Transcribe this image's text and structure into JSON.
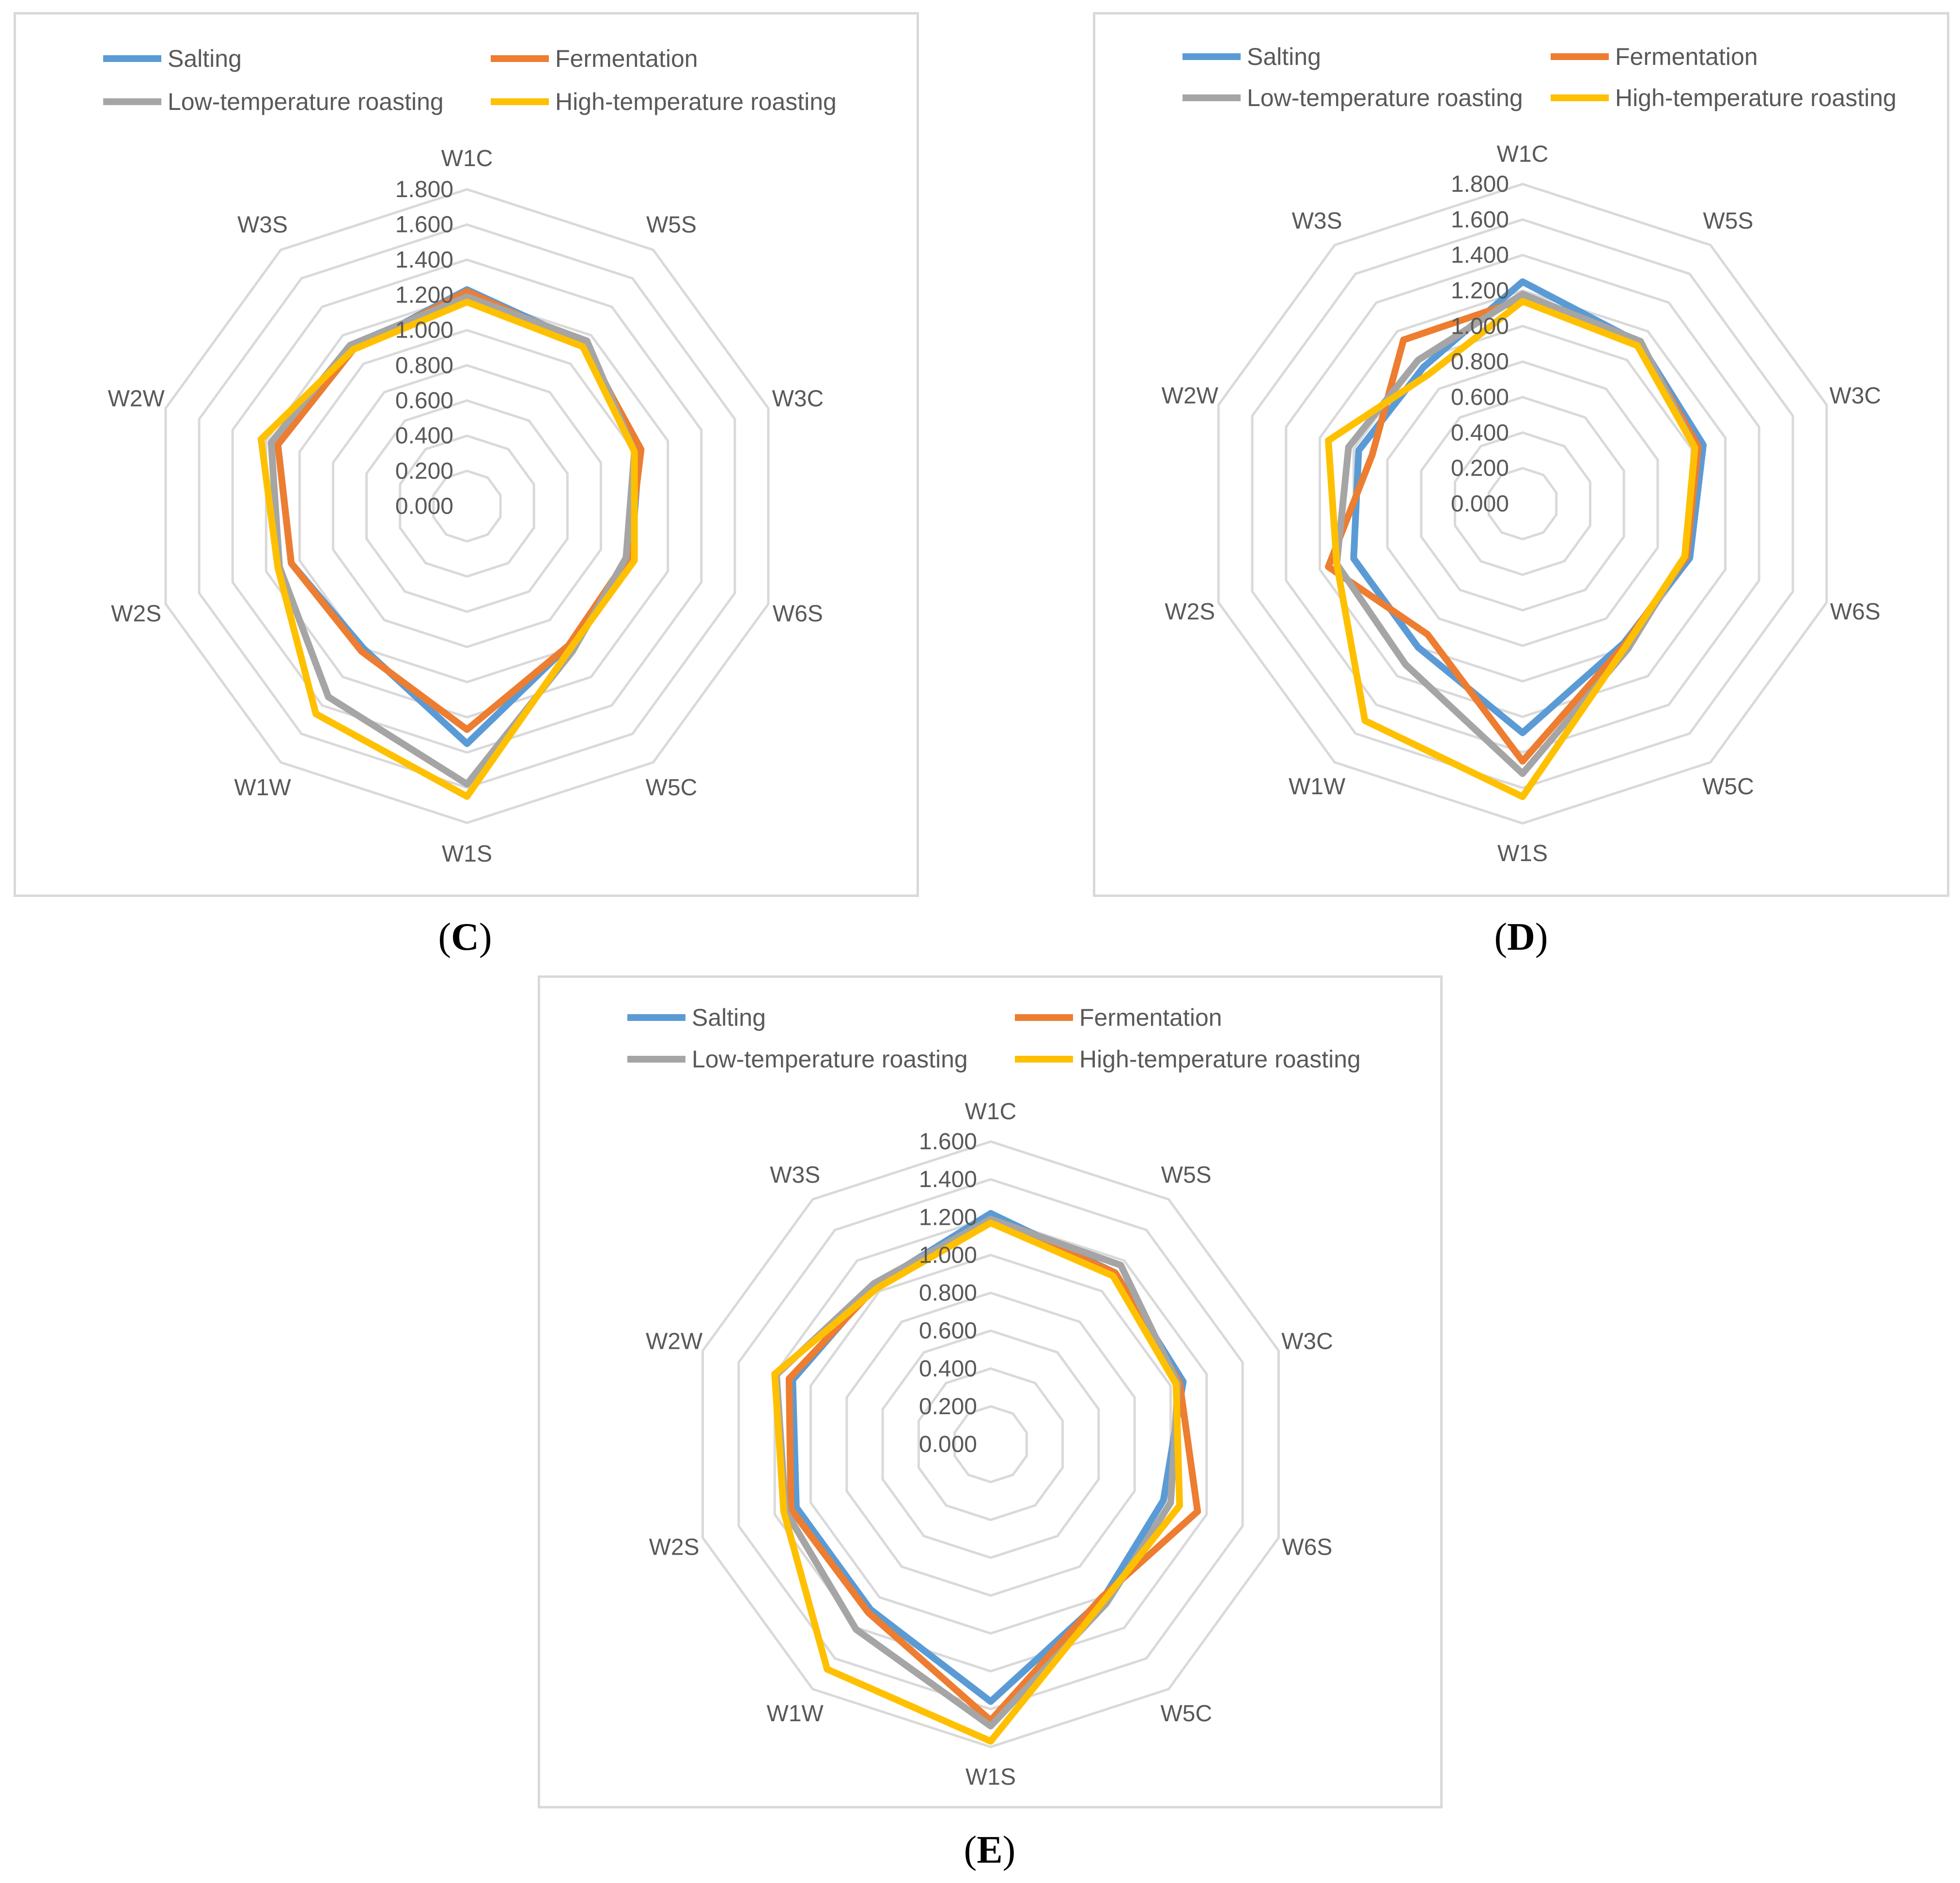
{
  "chart_data": [
    {
      "id": "C",
      "type": "radar",
      "caption": "C",
      "axes": [
        "W1C",
        "W5S",
        "W3C",
        "W6S",
        "W5C",
        "W1S",
        "W1W",
        "W2S",
        "W2W",
        "W3S"
      ],
      "rmax": 1.8,
      "ticks": [
        "0.000",
        "0.200",
        "0.400",
        "0.600",
        "0.800",
        "1.000",
        "1.200",
        "1.400",
        "1.600",
        "1.800"
      ],
      "series": [
        {
          "name": "Salting",
          "color": "#5B9BD5",
          "values": [
            1.23,
            1.14,
            1.03,
            0.98,
            0.98,
            1.35,
            1.0,
            1.05,
            1.13,
            1.1
          ]
        },
        {
          "name": "Fermentation",
          "color": "#ED7D31",
          "values": [
            1.22,
            1.13,
            1.04,
            0.96,
            0.98,
            1.27,
            1.02,
            1.05,
            1.13,
            1.1
          ]
        },
        {
          "name": "Low-temperature roasting",
          "color": "#A5A5A5",
          "values": [
            1.19,
            1.16,
            1.0,
            0.95,
            1.02,
            1.58,
            1.34,
            1.12,
            1.17,
            1.13
          ]
        },
        {
          "name": "High-temperature roasting",
          "color": "#FFC000",
          "values": [
            1.16,
            1.12,
            1.0,
            1.0,
            1.0,
            1.65,
            1.46,
            1.13,
            1.23,
            1.1
          ]
        }
      ]
    },
    {
      "id": "D",
      "type": "radar",
      "caption": "D",
      "axes": [
        "W1C",
        "W5S",
        "W3C",
        "W6S",
        "W5C",
        "W1S",
        "W1W",
        "W2S",
        "W2W",
        "W3S"
      ],
      "rmax": 1.8,
      "ticks": [
        "0.000",
        "0.200",
        "0.400",
        "0.600",
        "0.800",
        "1.000",
        "1.200",
        "1.400",
        "1.600",
        "1.800"
      ],
      "series": [
        {
          "name": "Salting",
          "color": "#5B9BD5",
          "values": [
            1.25,
            1.12,
            1.07,
            0.99,
            0.97,
            1.29,
            1.0,
            1.0,
            0.97,
            0.95
          ]
        },
        {
          "name": "Fermentation",
          "color": "#ED7D31",
          "values": [
            1.15,
            1.12,
            1.04,
            0.97,
            0.98,
            1.45,
            0.91,
            1.15,
            0.89,
            1.14
          ]
        },
        {
          "name": "Low-temperature roasting",
          "color": "#A5A5A5",
          "values": [
            1.18,
            1.13,
            1.02,
            0.96,
            1.01,
            1.52,
            1.12,
            1.1,
            1.03,
            1.0
          ]
        },
        {
          "name": "High-temperature roasting",
          "color": "#FFC000",
          "values": [
            1.14,
            1.1,
            1.02,
            0.96,
            0.99,
            1.65,
            1.51,
            1.1,
            1.15,
            0.9
          ]
        }
      ]
    },
    {
      "id": "E",
      "type": "radar",
      "caption": "E",
      "axes": [
        "W1C",
        "W5S",
        "W3C",
        "W6S",
        "W5C",
        "W1S",
        "W1W",
        "W2S",
        "W2W",
        "W3S"
      ],
      "rmax": 1.6,
      "ticks": [
        "0.000",
        "0.200",
        "0.400",
        "0.600",
        "0.800",
        "1.000",
        "1.200",
        "1.400",
        "1.600"
      ],
      "series": [
        {
          "name": "Salting",
          "color": "#5B9BD5",
          "values": [
            1.22,
            1.12,
            1.07,
            0.96,
            1.01,
            1.36,
            1.08,
            1.08,
            1.1,
            1.04
          ]
        },
        {
          "name": "Fermentation",
          "color": "#ED7D31",
          "values": [
            1.19,
            1.12,
            1.05,
            1.15,
            1.0,
            1.46,
            1.1,
            1.11,
            1.12,
            1.03
          ]
        },
        {
          "name": "Low-temperature roasting",
          "color": "#A5A5A5",
          "values": [
            1.19,
            1.17,
            1.04,
            1.0,
            1.04,
            1.49,
            1.21,
            1.14,
            1.19,
            1.05
          ]
        },
        {
          "name": "High-temperature roasting",
          "color": "#FFC000",
          "values": [
            1.17,
            1.1,
            1.03,
            1.05,
            1.02,
            1.57,
            1.47,
            1.15,
            1.2,
            1.02
          ]
        }
      ]
    }
  ]
}
